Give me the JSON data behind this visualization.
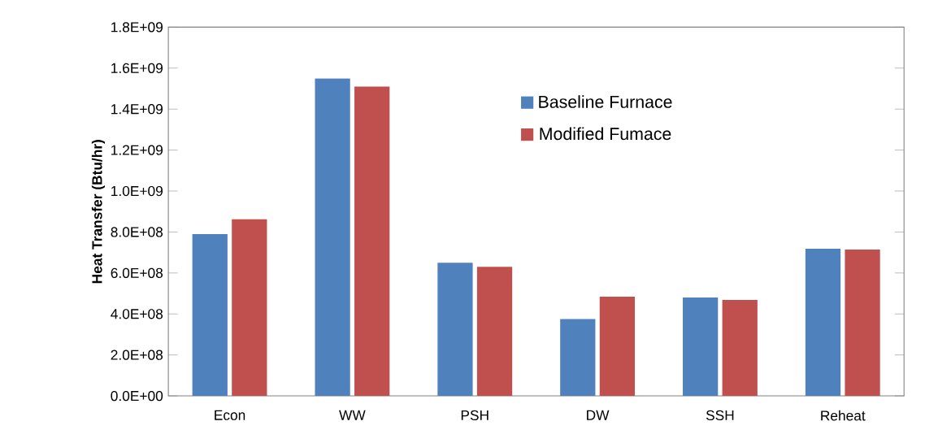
{
  "chart_data": {
    "type": "bar",
    "ylabel": "Heat Transfer (Btu/hr)",
    "categories": [
      "Econ",
      "WW",
      "PSH",
      "DW",
      "SSH",
      "Reheat"
    ],
    "series": [
      {
        "name": "Baseline Furnace",
        "color": "#4f81bd",
        "values": [
          790000000,
          1550000000,
          650000000,
          375000000,
          480000000,
          718000000
        ]
      },
      {
        "name": "Modified Fumace",
        "color": "#c0504d",
        "values": [
          862000000,
          1510000000,
          630000000,
          484000000,
          468000000,
          714000000
        ]
      }
    ],
    "ylim": [
      0,
      1800000000
    ],
    "yticks": [
      {
        "value": 0,
        "label": "0.0E+00"
      },
      {
        "value": 200000000,
        "label": "2.0E+08"
      },
      {
        "value": 400000000,
        "label": "4.0E+08"
      },
      {
        "value": 600000000,
        "label": "6.0E+08"
      },
      {
        "value": 800000000,
        "label": "8.0E+08"
      },
      {
        "value": 1000000000,
        "label": "1.0E+09"
      },
      {
        "value": 1200000000,
        "label": "1.2E+09"
      },
      {
        "value": 1400000000,
        "label": "1.4E+09"
      },
      {
        "value": 1600000000,
        "label": "1.6E+09"
      },
      {
        "value": 1800000000,
        "label": "1.8E+09"
      }
    ],
    "legend": "top right"
  }
}
